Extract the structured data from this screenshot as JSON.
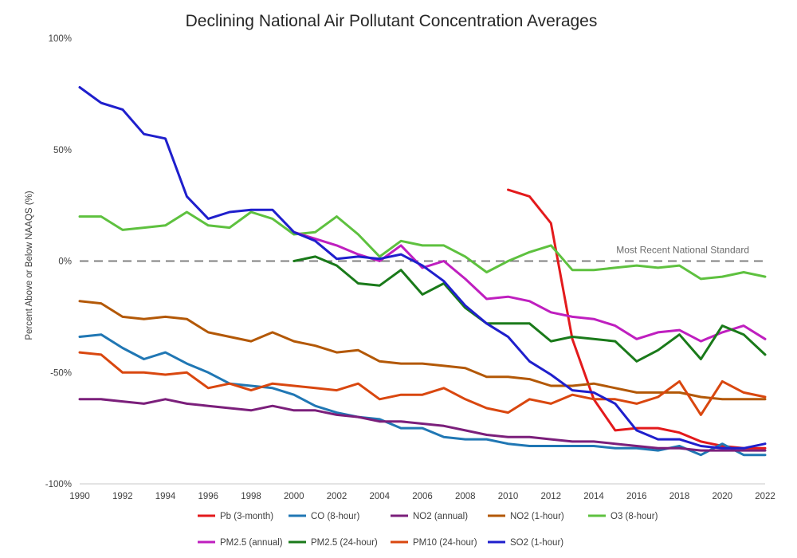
{
  "chart_data": {
    "type": "line",
    "title": "Declining National Air Pollutant Concentration Averages",
    "ylabel": "Percent Above or Below NAAQS (%)",
    "xlabel": "",
    "xlim": [
      1990,
      2022
    ],
    "ylim": [
      -100,
      100
    ],
    "x_ticks": [
      "1990",
      "1992",
      "1994",
      "1996",
      "1998",
      "2000",
      "2002",
      "2004",
      "2006",
      "2008",
      "2010",
      "2012",
      "2014",
      "2016",
      "2018",
      "2020",
      "2022"
    ],
    "y_ticks": [
      {
        "value": 100,
        "label": "100%"
      },
      {
        "value": 50,
        "label": "50%"
      },
      {
        "value": 0,
        "label": "0%"
      },
      {
        "value": -50,
        "label": "-50%"
      },
      {
        "value": -100,
        "label": "-100%"
      }
    ],
    "reference_line": {
      "value": 0,
      "label": "Most Recent National Standard",
      "color": "#808080"
    },
    "legend_placement": "bottom",
    "series": [
      {
        "name": "Pb (3-month)",
        "color": "#e31a1c",
        "x": [
          2010,
          2011,
          2012,
          2013,
          2014,
          2015,
          2016,
          2017,
          2018,
          2019,
          2020,
          2021,
          2022
        ],
        "values": [
          32,
          29,
          17,
          -35,
          -62,
          -76,
          -75,
          -75,
          -77,
          -81,
          -83,
          -84,
          -84
        ]
      },
      {
        "name": "CO (8-hour)",
        "color": "#2077b4",
        "x": [
          1990,
          1991,
          1992,
          1993,
          1994,
          1995,
          1996,
          1997,
          1998,
          1999,
          2000,
          2001,
          2002,
          2003,
          2004,
          2005,
          2006,
          2007,
          2008,
          2009,
          2010,
          2011,
          2012,
          2013,
          2014,
          2015,
          2016,
          2017,
          2018,
          2019,
          2020,
          2021,
          2022
        ],
        "values": [
          -34,
          -33,
          -39,
          -44,
          -41,
          -46,
          -50,
          -55,
          -56,
          -57,
          -60,
          -65,
          -68,
          -70,
          -71,
          -75,
          -75,
          -79,
          -80,
          -80,
          -82,
          -83,
          -83,
          -83,
          -83,
          -84,
          -84,
          -85,
          -83,
          -87,
          -82,
          -87,
          -87
        ]
      },
      {
        "name": "NO2 (annual)",
        "color": "#7b1f7b",
        "x": [
          1990,
          1991,
          1992,
          1993,
          1994,
          1995,
          1996,
          1997,
          1998,
          1999,
          2000,
          2001,
          2002,
          2003,
          2004,
          2005,
          2006,
          2007,
          2008,
          2009,
          2010,
          2011,
          2012,
          2013,
          2014,
          2015,
          2016,
          2017,
          2018,
          2019,
          2020,
          2021,
          2022
        ],
        "values": [
          -62,
          -62,
          -63,
          -64,
          -62,
          -64,
          -65,
          -66,
          -67,
          -65,
          -67,
          -67,
          -69,
          -70,
          -72,
          -72,
          -73,
          -74,
          -76,
          -78,
          -79,
          -79,
          -80,
          -81,
          -81,
          -82,
          -83,
          -84,
          -84,
          -85,
          -85,
          -85,
          -85
        ]
      },
      {
        "name": "NO2 (1-hour)",
        "color": "#b35806",
        "x": [
          1990,
          1991,
          1992,
          1993,
          1994,
          1995,
          1996,
          1997,
          1998,
          1999,
          2000,
          2001,
          2002,
          2003,
          2004,
          2005,
          2006,
          2007,
          2008,
          2009,
          2010,
          2011,
          2012,
          2013,
          2014,
          2015,
          2016,
          2017,
          2018,
          2019,
          2020,
          2021,
          2022
        ],
        "values": [
          -18,
          -19,
          -25,
          -26,
          -25,
          -26,
          -32,
          -34,
          -36,
          -32,
          -36,
          -38,
          -41,
          -40,
          -45,
          -46,
          -46,
          -47,
          -48,
          -52,
          -52,
          -53,
          -56,
          -56,
          -55,
          -57,
          -59,
          -59,
          -59,
          -61,
          -62,
          -62,
          -62
        ]
      },
      {
        "name": "O3 (8-hour)",
        "color": "#5ec13f",
        "x": [
          1990,
          1991,
          1992,
          1993,
          1994,
          1995,
          1996,
          1997,
          1998,
          1999,
          2000,
          2001,
          2002,
          2003,
          2004,
          2005,
          2006,
          2007,
          2008,
          2009,
          2010,
          2011,
          2012,
          2013,
          2014,
          2015,
          2016,
          2017,
          2018,
          2019,
          2020,
          2021,
          2022
        ],
        "values": [
          20,
          20,
          14,
          15,
          16,
          22,
          16,
          15,
          22,
          19,
          12,
          13,
          20,
          12,
          2,
          9,
          7,
          7,
          2,
          -5,
          0,
          4,
          7,
          -4,
          -4,
          -3,
          -2,
          -3,
          -2,
          -8,
          -7,
          -5,
          -7
        ]
      },
      {
        "name": "PM2.5 (annual)",
        "color": "#bf1fbf",
        "x": [
          2000,
          2001,
          2002,
          2003,
          2004,
          2005,
          2006,
          2007,
          2008,
          2009,
          2010,
          2011,
          2012,
          2013,
          2014,
          2015,
          2016,
          2017,
          2018,
          2019,
          2020,
          2021,
          2022
        ],
        "values": [
          13,
          10,
          7,
          3,
          0,
          7,
          -3,
          0,
          -8,
          -17,
          -16,
          -18,
          -23,
          -25,
          -26,
          -29,
          -35,
          -32,
          -31,
          -36,
          -32,
          -29,
          -35
        ]
      },
      {
        "name": "PM2.5 (24-hour)",
        "color": "#1a7a1a",
        "x": [
          2000,
          2001,
          2002,
          2003,
          2004,
          2005,
          2006,
          2007,
          2008,
          2009,
          2010,
          2011,
          2012,
          2013,
          2014,
          2015,
          2016,
          2017,
          2018,
          2019,
          2020,
          2021,
          2022
        ],
        "values": [
          0,
          2,
          -2,
          -10,
          -11,
          -4,
          -15,
          -10,
          -21,
          -28,
          -28,
          -28,
          -36,
          -34,
          -35,
          -36,
          -45,
          -40,
          -33,
          -44,
          -29,
          -33,
          -42
        ]
      },
      {
        "name": "PM10 (24-hour)",
        "color": "#d9470f",
        "x": [
          1990,
          1991,
          1992,
          1993,
          1994,
          1995,
          1996,
          1997,
          1998,
          1999,
          2000,
          2001,
          2002,
          2003,
          2004,
          2005,
          2006,
          2007,
          2008,
          2009,
          2010,
          2011,
          2012,
          2013,
          2014,
          2015,
          2016,
          2017,
          2018,
          2019,
          2020,
          2021,
          2022
        ],
        "values": [
          -41,
          -42,
          -50,
          -50,
          -51,
          -50,
          -57,
          -55,
          -58,
          -55,
          -56,
          -57,
          -58,
          -55,
          -62,
          -60,
          -60,
          -57,
          -62,
          -66,
          -68,
          -62,
          -64,
          -60,
          -62,
          -62,
          -64,
          -61,
          -54,
          -69,
          -54,
          -59,
          -61
        ]
      },
      {
        "name": "SO2 (1-hour)",
        "color": "#1f1fcc",
        "x": [
          1990,
          1991,
          1992,
          1993,
          1994,
          1995,
          1996,
          1997,
          1998,
          1999,
          2000,
          2001,
          2002,
          2003,
          2004,
          2005,
          2006,
          2007,
          2008,
          2009,
          2010,
          2011,
          2012,
          2013,
          2014,
          2015,
          2016,
          2017,
          2018,
          2019,
          2020,
          2021,
          2022
        ],
        "values": [
          78,
          71,
          68,
          57,
          55,
          29,
          19,
          22,
          23,
          23,
          13,
          9,
          1,
          2,
          1,
          3,
          -2,
          -9,
          -20,
          -28,
          -34,
          -45,
          -51,
          -58,
          -59,
          -64,
          -76,
          -80,
          -80,
          -83,
          -84,
          -84,
          -82
        ]
      }
    ]
  }
}
